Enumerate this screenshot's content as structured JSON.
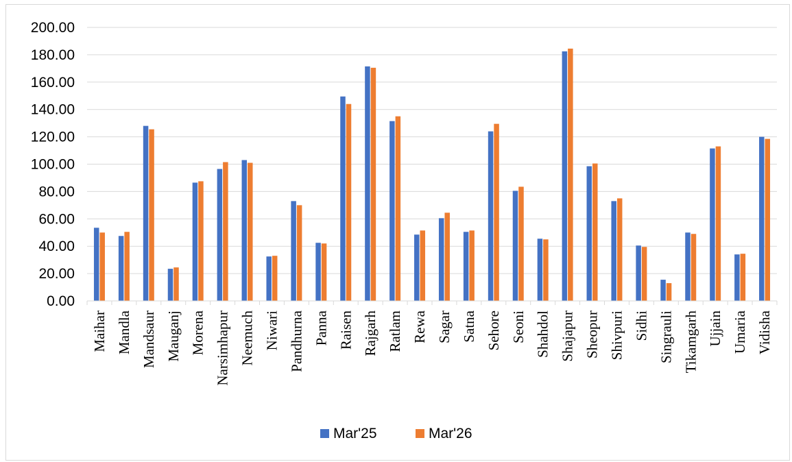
{
  "chart_data": {
    "type": "bar",
    "categories": [
      "Maihar",
      "Mandla",
      "Mandsaur",
      "Mauganj",
      "Morena",
      "Narsimhapur",
      "Neemuch",
      "Niwari",
      "Pandhurna",
      "Panna",
      "Raisen",
      "Rajgarh",
      "Ratlam",
      "Rewa",
      "Sagar",
      "Satna",
      "Sehore",
      "Seoni",
      "Shahdol",
      "Shajapur",
      "Sheopur",
      "Shivpuri",
      "Sidhi",
      "Singrauli",
      "Tikamgarh",
      "Ujjain",
      "Umaria",
      "Vidisha"
    ],
    "series": [
      {
        "name": "Mar'25",
        "color": "#4472C4",
        "values": [
          53.5,
          47.5,
          128.0,
          23.5,
          86.5,
          96.5,
          103.0,
          32.5,
          73.0,
          42.5,
          149.5,
          171.5,
          131.5,
          48.5,
          60.5,
          50.5,
          124.0,
          80.5,
          45.5,
          182.5,
          98.5,
          73.0,
          40.5,
          15.5,
          50.0,
          111.5,
          34.0,
          120.0
        ]
      },
      {
        "name": "Mar'26",
        "color": "#ED7D31",
        "values": [
          50.0,
          50.5,
          125.5,
          24.5,
          87.5,
          101.5,
          101.0,
          33.0,
          70.0,
          42.0,
          144.0,
          170.5,
          135.0,
          51.5,
          64.5,
          51.5,
          129.5,
          83.5,
          45.0,
          184.5,
          100.5,
          75.0,
          39.5,
          13.0,
          49.0,
          113.0,
          34.5,
          118.5
        ]
      }
    ],
    "yticks": [
      "0.00",
      "20.00",
      "40.00",
      "60.00",
      "80.00",
      "100.00",
      "120.00",
      "140.00",
      "160.00",
      "180.00",
      "200.00"
    ],
    "ylim": [
      0,
      200
    ],
    "grid": true,
    "legend_position": "bottom"
  }
}
